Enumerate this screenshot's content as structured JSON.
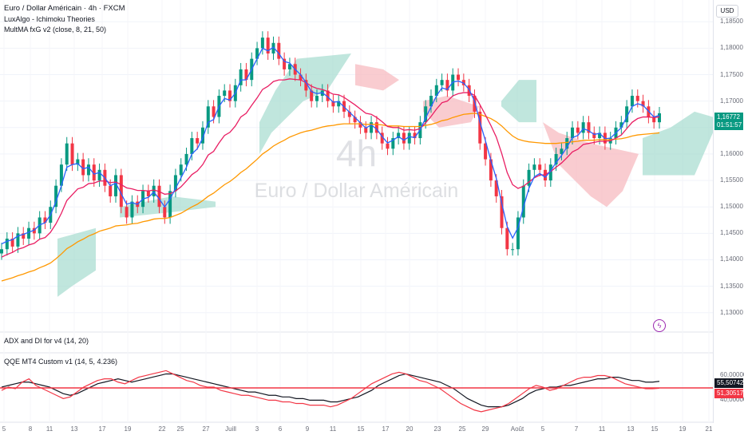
{
  "legend": {
    "symbol": "Euro / Dollar Américain · 4h · FXCM",
    "indicator1": "LuxAlgo - Ichimoku Theories",
    "indicator2": "MultMA fxG v2 (close, 8, 21, 50)"
  },
  "currency_button": "USD",
  "watermark": {
    "interval": "4h",
    "name": "Euro / Dollar Américain"
  },
  "price_scale": {
    "ticks": [
      "1,18500",
      "1,18000",
      "1,17500",
      "1,17000",
      "1,16500",
      "1,16000",
      "1,15500",
      "1,15000",
      "1,14500",
      "1,14000",
      "1,13500",
      "1,13000"
    ],
    "last_price": "1,16772",
    "countdown": "01:51:57"
  },
  "pane2": {
    "title": "ADX and DI for v4 (14, 20)"
  },
  "pane3": {
    "title": "QQE MT4 Custom v1 (14, 5, 4.236)",
    "ticks": [
      "60,00000",
      "40,00000"
    ],
    "value_black": "55,50742",
    "value_red": "51,30517"
  },
  "time_axis": [
    "5",
    "8",
    "11",
    "13",
    "17",
    "19",
    "22",
    "25",
    "27",
    "Juill",
    "3",
    "6",
    "9",
    "11",
    "15",
    "17",
    "20",
    "23",
    "25",
    "29",
    "Août",
    "5",
    "7",
    "11",
    "13",
    "15",
    "19",
    "21"
  ],
  "colors": {
    "up": "#089981",
    "down": "#f23645",
    "ma_fast": "#2962ff",
    "ma_mid": "#e91e63",
    "ma_slow": "#ff9800",
    "cloud_bull": "#a5dcce",
    "cloud_bear": "#f7b6bc"
  },
  "chart_data": {
    "type": "candlestick",
    "title": "Euro / Dollar Américain · 4h · FXCM",
    "ylim": [
      1.128,
      1.187
    ],
    "close": [
      1.142,
      1.144,
      1.1425,
      1.145,
      1.144,
      1.146,
      1.145,
      1.148,
      1.147,
      1.15,
      1.154,
      1.158,
      1.162,
      1.158,
      1.159,
      1.156,
      1.158,
      1.155,
      1.157,
      1.154,
      1.152,
      1.156,
      1.15,
      1.148,
      1.151,
      1.15,
      1.153,
      1.152,
      1.154,
      1.15,
      1.148,
      1.153,
      1.156,
      1.158,
      1.16,
      1.163,
      1.162,
      1.165,
      1.169,
      1.167,
      1.171,
      1.172,
      1.17,
      1.173,
      1.176,
      1.174,
      1.178,
      1.18,
      1.182,
      1.179,
      1.181,
      1.178,
      1.176,
      1.177,
      1.175,
      1.174,
      1.172,
      1.17,
      1.171,
      1.172,
      1.17,
      1.169,
      1.17,
      1.168,
      1.167,
      1.166,
      1.165,
      1.164,
      1.166,
      1.164,
      1.162,
      1.161,
      1.163,
      1.164,
      1.162,
      1.164,
      1.163,
      1.166,
      1.169,
      1.171,
      1.173,
      1.174,
      1.172,
      1.175,
      1.174,
      1.173,
      1.171,
      1.168,
      1.162,
      1.159,
      1.155,
      1.152,
      1.146,
      1.142,
      1.142,
      1.148,
      1.154,
      1.157,
      1.158,
      1.157,
      1.155,
      1.158,
      1.16,
      1.161,
      1.163,
      1.165,
      1.164,
      1.166,
      1.164,
      1.163,
      1.164,
      1.162,
      1.163,
      1.165,
      1.166,
      1.169,
      1.171,
      1.17,
      1.169,
      1.167,
      1.166,
      1.1677
    ],
    "ma_fast": [
      1.143,
      1.1435,
      1.1438,
      1.1445,
      1.1448,
      1.1452,
      1.1456,
      1.1466,
      1.147,
      1.1485,
      1.151,
      1.154,
      1.1575,
      1.158,
      1.1582,
      1.1572,
      1.1575,
      1.1562,
      1.1565,
      1.1555,
      1.154,
      1.1545,
      1.1525,
      1.1505,
      1.1508,
      1.1505,
      1.1515,
      1.1518,
      1.1528,
      1.1515,
      1.15,
      1.1515,
      1.1535,
      1.1555,
      1.1575,
      1.16,
      1.161,
      1.163,
      1.166,
      1.1665,
      1.169,
      1.1705,
      1.1702,
      1.1715,
      1.174,
      1.174,
      1.176,
      1.178,
      1.18,
      1.1795,
      1.1802,
      1.179,
      1.1775,
      1.1772,
      1.176,
      1.175,
      1.1735,
      1.1718,
      1.1714,
      1.1716,
      1.1708,
      1.1698,
      1.1699,
      1.1689,
      1.1679,
      1.1669,
      1.1659,
      1.1649,
      1.1655,
      1.1647,
      1.1633,
      1.1621,
      1.1626,
      1.1633,
      1.1626,
      1.1633,
      1.1631,
      1.1646,
      1.1668,
      1.1689,
      1.171,
      1.1725,
      1.1722,
      1.1736,
      1.1738,
      1.1734,
      1.1722,
      1.17,
      1.166,
      1.1625,
      1.1588,
      1.1554,
      1.1507,
      1.1463,
      1.1441,
      1.1461,
      1.15,
      1.1535,
      1.1557,
      1.1563,
      1.1556,
      1.1568,
      1.1584,
      1.1597,
      1.1613,
      1.1631,
      1.1635,
      1.1648,
      1.1644,
      1.1637,
      1.1639,
      1.1629,
      1.163,
      1.164,
      1.165,
      1.167,
      1.169,
      1.1695,
      1.1692,
      1.1681,
      1.167,
      1.1673
    ],
    "ma_mid": [
      1.1405,
      1.141,
      1.1414,
      1.142,
      1.1423,
      1.1428,
      1.1431,
      1.1439,
      1.1442,
      1.1452,
      1.1468,
      1.1488,
      1.1512,
      1.1523,
      1.1534,
      1.1537,
      1.1544,
      1.1545,
      1.1549,
      1.1549,
      1.1546,
      1.1547,
      1.1542,
      1.1536,
      1.1534,
      1.1531,
      1.1531,
      1.153,
      1.1532,
      1.1529,
      1.1524,
      1.1525,
      1.153,
      1.1538,
      1.1549,
      1.1561,
      1.1568,
      1.158,
      1.1598,
      1.1605,
      1.1621,
      1.1635,
      1.1641,
      1.1653,
      1.167,
      1.1677,
      1.1692,
      1.1706,
      1.1722,
      1.1728,
      1.1737,
      1.174,
      1.174,
      1.1742,
      1.1741,
      1.174,
      1.1735,
      1.1728,
      1.1724,
      1.1722,
      1.1718,
      1.1713,
      1.1712,
      1.1707,
      1.17,
      1.1693,
      1.1685,
      1.1677,
      1.1675,
      1.1669,
      1.1661,
      1.1652,
      1.165,
      1.165,
      1.1645,
      1.1646,
      1.1645,
      1.1648,
      1.1659,
      1.1671,
      1.1685,
      1.1697,
      1.17,
      1.171,
      1.1714,
      1.1716,
      1.1716,
      1.1711,
      1.1693,
      1.1674,
      1.1654,
      1.1632,
      1.1601,
      1.1565,
      1.1542,
      1.1535,
      1.1539,
      1.1547,
      1.1555,
      1.156,
      1.1561,
      1.1567,
      1.1575,
      1.1583,
      1.1593,
      1.1604,
      1.1609,
      1.1618,
      1.162,
      1.1622,
      1.1624,
      1.1624,
      1.1625,
      1.163,
      1.1636,
      1.1648,
      1.166,
      1.1667,
      1.167,
      1.167,
      1.1669,
      1.167
    ],
    "ma_slow": [
      1.136,
      1.1363,
      1.1366,
      1.137,
      1.1373,
      1.1377,
      1.138,
      1.1385,
      1.1389,
      1.1394,
      1.1402,
      1.1411,
      1.1421,
      1.1427,
      1.1434,
      1.1439,
      1.1445,
      1.1449,
      1.1454,
      1.1457,
      1.146,
      1.1464,
      1.1465,
      1.1466,
      1.1468,
      1.1469,
      1.1472,
      1.1474,
      1.1477,
      1.1478,
      1.1478,
      1.148,
      1.1484,
      1.1488,
      1.1494,
      1.15,
      1.1505,
      1.1512,
      1.152,
      1.1526,
      1.1534,
      1.1542,
      1.1548,
      1.1556,
      1.1565,
      1.1572,
      1.1581,
      1.159,
      1.16,
      1.1607,
      1.1615,
      1.1621,
      1.1626,
      1.1632,
      1.1636,
      1.164,
      1.1643,
      1.1645,
      1.1648,
      1.1651,
      1.1653,
      1.1654,
      1.1656,
      1.1657,
      1.1657,
      1.1657,
      1.1657,
      1.1656,
      1.1656,
      1.1656,
      1.1655,
      1.1653,
      1.1653,
      1.1653,
      1.1652,
      1.1652,
      1.1652,
      1.1652,
      1.1654,
      1.1656,
      1.1659,
      1.1663,
      1.1665,
      1.1669,
      1.1672,
      1.1675,
      1.1676,
      1.1677,
      1.1675,
      1.1671,
      1.1667,
      1.1661,
      1.1653,
      1.1643,
      1.1634,
      1.1628,
      1.1625,
      1.1623,
      1.1622,
      1.1621,
      1.162,
      1.162,
      1.162,
      1.1621,
      1.1622,
      1.1623,
      1.1624,
      1.1626,
      1.1626,
      1.1626,
      1.1627,
      1.1627,
      1.1627,
      1.1628,
      1.1629,
      1.1631,
      1.1634,
      1.1636,
      1.1637,
      1.1638,
      1.1639,
      1.164
    ],
    "qqe_black": [
      52,
      53,
      54,
      55,
      55,
      54,
      53,
      52,
      50,
      48,
      47,
      48,
      50,
      52,
      54,
      55,
      56,
      57,
      56,
      55,
      56,
      57,
      58,
      59,
      60,
      60,
      59,
      58,
      57,
      56,
      55,
      54,
      53,
      52,
      51,
      50,
      49,
      49,
      48,
      47,
      47,
      46,
      46,
      45,
      45,
      44,
      44,
      44,
      43,
      43,
      44,
      45,
      46,
      48,
      50,
      53,
      55,
      57,
      59,
      60,
      59,
      58,
      57,
      56,
      55,
      53,
      51,
      48,
      45,
      43,
      41,
      40,
      40,
      40,
      41,
      43,
      45,
      48,
      50,
      51,
      52,
      52,
      53,
      53,
      54,
      55,
      56,
      57,
      57,
      58,
      58,
      57,
      56,
      56,
      55,
      55,
      55.5
    ],
    "qqe_red": [
      50,
      52,
      51,
      55,
      57,
      53,
      51,
      49,
      47,
      45,
      46,
      49,
      52,
      54,
      56,
      57,
      57,
      55,
      54,
      56,
      58,
      59,
      60,
      61,
      62,
      60,
      58,
      56,
      55,
      53,
      52,
      52,
      50,
      49,
      48,
      47,
      47,
      46,
      45,
      44,
      44,
      43,
      43,
      42,
      42,
      41,
      41,
      41,
      40,
      41,
      43,
      45,
      48,
      51,
      54,
      56,
      58,
      60,
      61,
      60,
      58,
      56,
      55,
      53,
      51,
      48,
      45,
      42,
      40,
      38,
      37,
      38,
      39,
      40,
      42,
      45,
      48,
      51,
      53,
      52,
      50,
      51,
      53,
      55,
      57,
      58,
      58,
      59,
      59,
      58,
      56,
      54,
      53,
      52,
      51,
      51,
      51.3
    ]
  }
}
